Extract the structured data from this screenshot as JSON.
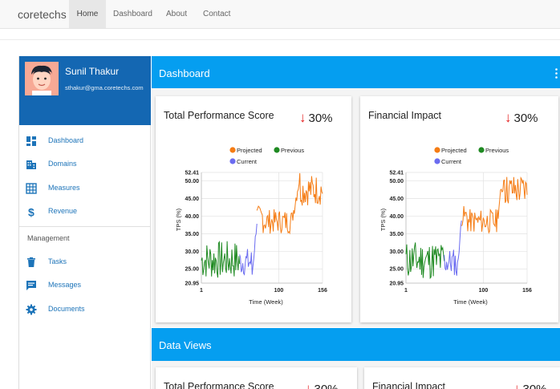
{
  "navbar": {
    "brand": "coretechs",
    "items": [
      {
        "label": "Home",
        "active": true
      },
      {
        "label": "Dashboard",
        "active": false
      },
      {
        "label": "About",
        "active": false
      },
      {
        "label": "Contact",
        "active": false
      }
    ]
  },
  "sidebar": {
    "user": {
      "name": "Sunil Thakur",
      "email": "sthakur@gma.coretechs.com"
    },
    "menu": [
      {
        "label": "Dashboard",
        "icon": "dashboard-icon"
      },
      {
        "label": "Domains",
        "icon": "domains-icon"
      },
      {
        "label": "Measures",
        "icon": "measures-icon"
      },
      {
        "label": "Revenue",
        "icon": "revenue-icon"
      }
    ],
    "section_label": "Management",
    "management": [
      {
        "label": "Tasks",
        "icon": "tasks-icon"
      },
      {
        "label": "Messages",
        "icon": "messages-icon"
      },
      {
        "label": "Documents",
        "icon": "documents-icon"
      }
    ]
  },
  "dashboard": {
    "title": "Dashboard",
    "cards": [
      {
        "title": "Total Performance Score",
        "change": "30%"
      },
      {
        "title": "Financial Impact",
        "change": "30%"
      }
    ]
  },
  "data_views": {
    "title": "Data Views",
    "cards": [
      {
        "title": "Total Performance Score",
        "change": "30%"
      },
      {
        "title": "Financial Impact",
        "change": "30%"
      }
    ]
  },
  "colors": {
    "accent": "#059ef0",
    "profile_bg": "#1467b2",
    "down_arrow": "#e52222",
    "projected": "#f57c14",
    "previous": "#1f8a22",
    "current": "#6b6cf0"
  },
  "chart_data": [
    {
      "type": "line",
      "xlabel": "Time (Week)",
      "ylabel": "TPS (%)",
      "x_ticks": [
        "1",
        "100",
        "156"
      ],
      "y_ticks": [
        "20.95",
        "25.00",
        "30.00",
        "35.00",
        "40.00",
        "45.00",
        "50.00",
        "52.41"
      ],
      "xlim": [
        1,
        156
      ],
      "ylim": [
        20.95,
        52.41
      ],
      "grid": true,
      "legend": [
        "Projected",
        "Previous",
        "Current"
      ],
      "legend_position": "top",
      "series": [
        {
          "name": "Previous",
          "color": "#1f8a22",
          "x_range": [
            1,
            50
          ],
          "approx_range": [
            22,
            34
          ]
        },
        {
          "name": "Current",
          "color": "#6b6cf0",
          "x_range": [
            50,
            72
          ],
          "approx_range": [
            22,
            40
          ]
        },
        {
          "name": "Projected",
          "color": "#f57c14",
          "x_range": [
            72,
            156
          ],
          "approx_range": [
            35,
            52
          ]
        }
      ]
    },
    {
      "type": "line",
      "xlabel": "Time (Week)",
      "ylabel": "TPS (%)",
      "x_ticks": [
        "1",
        "100",
        "156"
      ],
      "y_ticks": [
        "20.95",
        "25.00",
        "30.00",
        "35.00",
        "40.00",
        "45.00",
        "50.00",
        "52.41"
      ],
      "xlim": [
        1,
        156
      ],
      "ylim": [
        20.95,
        52.41
      ],
      "grid": true,
      "legend": [
        "Projected",
        "Previous",
        "Current"
      ],
      "legend_position": "top",
      "series": [
        {
          "name": "Previous",
          "color": "#1f8a22",
          "x_range": [
            1,
            50
          ],
          "approx_range": [
            22,
            34
          ]
        },
        {
          "name": "Current",
          "color": "#6b6cf0",
          "x_range": [
            50,
            72
          ],
          "approx_range": [
            22,
            40
          ]
        },
        {
          "name": "Projected",
          "color": "#f57c14",
          "x_range": [
            72,
            156
          ],
          "approx_range": [
            35,
            52
          ]
        }
      ]
    }
  ]
}
